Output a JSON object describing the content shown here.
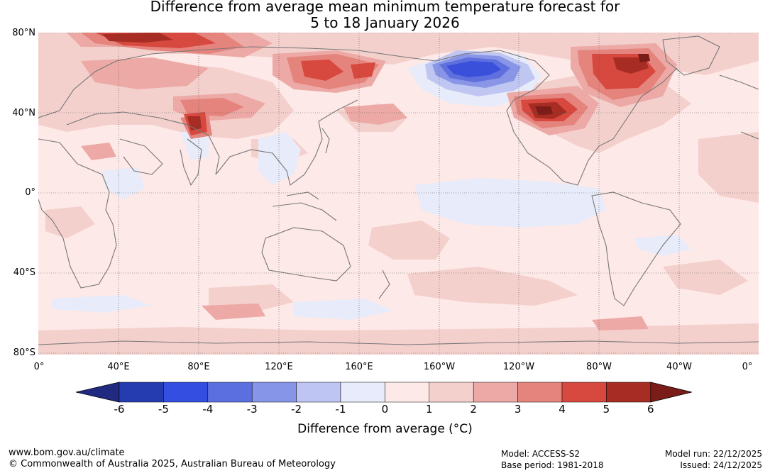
{
  "title": {
    "line1": "Difference from average mean minimum temperature forecast for",
    "line2": "5 to 18 January 2026"
  },
  "map": {
    "lat_labels": [
      "80°N",
      "40°N",
      "0°",
      "40°S",
      "80°S"
    ],
    "lon_labels": [
      "0°",
      "40°E",
      "80°E",
      "120°E",
      "160°E",
      "160°W",
      "120°W",
      "80°W",
      "40°W",
      "0°"
    ],
    "colors": {
      "land_outline": "#777777",
      "grid": "#555555",
      "near_zero_pos": "#fde9e7",
      "pos1": "#f4d0cd",
      "pos2": "#eca9a5",
      "pos3": "#e5837d",
      "pos4": "#d7483f",
      "pos5": "#a72c23",
      "pos6": "#7a1c17",
      "neg1": "#e8ebf9",
      "neg2": "#bfc6f1",
      "neg3": "#8995e6",
      "neg4": "#5f6fdd",
      "neg5": "#3a4fda",
      "neg6": "#253b9e"
    }
  },
  "colorbar": {
    "ticks": [
      "-6",
      "-5",
      "-4",
      "-3",
      "-2",
      "-1",
      "0",
      "1",
      "2",
      "3",
      "4",
      "5",
      "6"
    ],
    "colors": [
      "#1f2a80",
      "#253cb0",
      "#334ee0",
      "#5c6fe0",
      "#8795e8",
      "#bec5f2",
      "#e8ebfb",
      "#fde9e7",
      "#f4d0cd",
      "#eca9a5",
      "#e5837d",
      "#d7483f",
      "#a72c23",
      "#7a1c17"
    ],
    "label": "Difference from average (°C)"
  },
  "footer": {
    "url": "www.bom.gov.au/climate",
    "copyright": "© Commonwealth of Australia 2025, Australian Bureau of Meteorology",
    "model": "Model: ACCESS-S2",
    "base_period": "Base period: 1981-2018",
    "model_run": "Model run: 22/12/2025",
    "issued": "Issued: 24/12/2025"
  }
}
